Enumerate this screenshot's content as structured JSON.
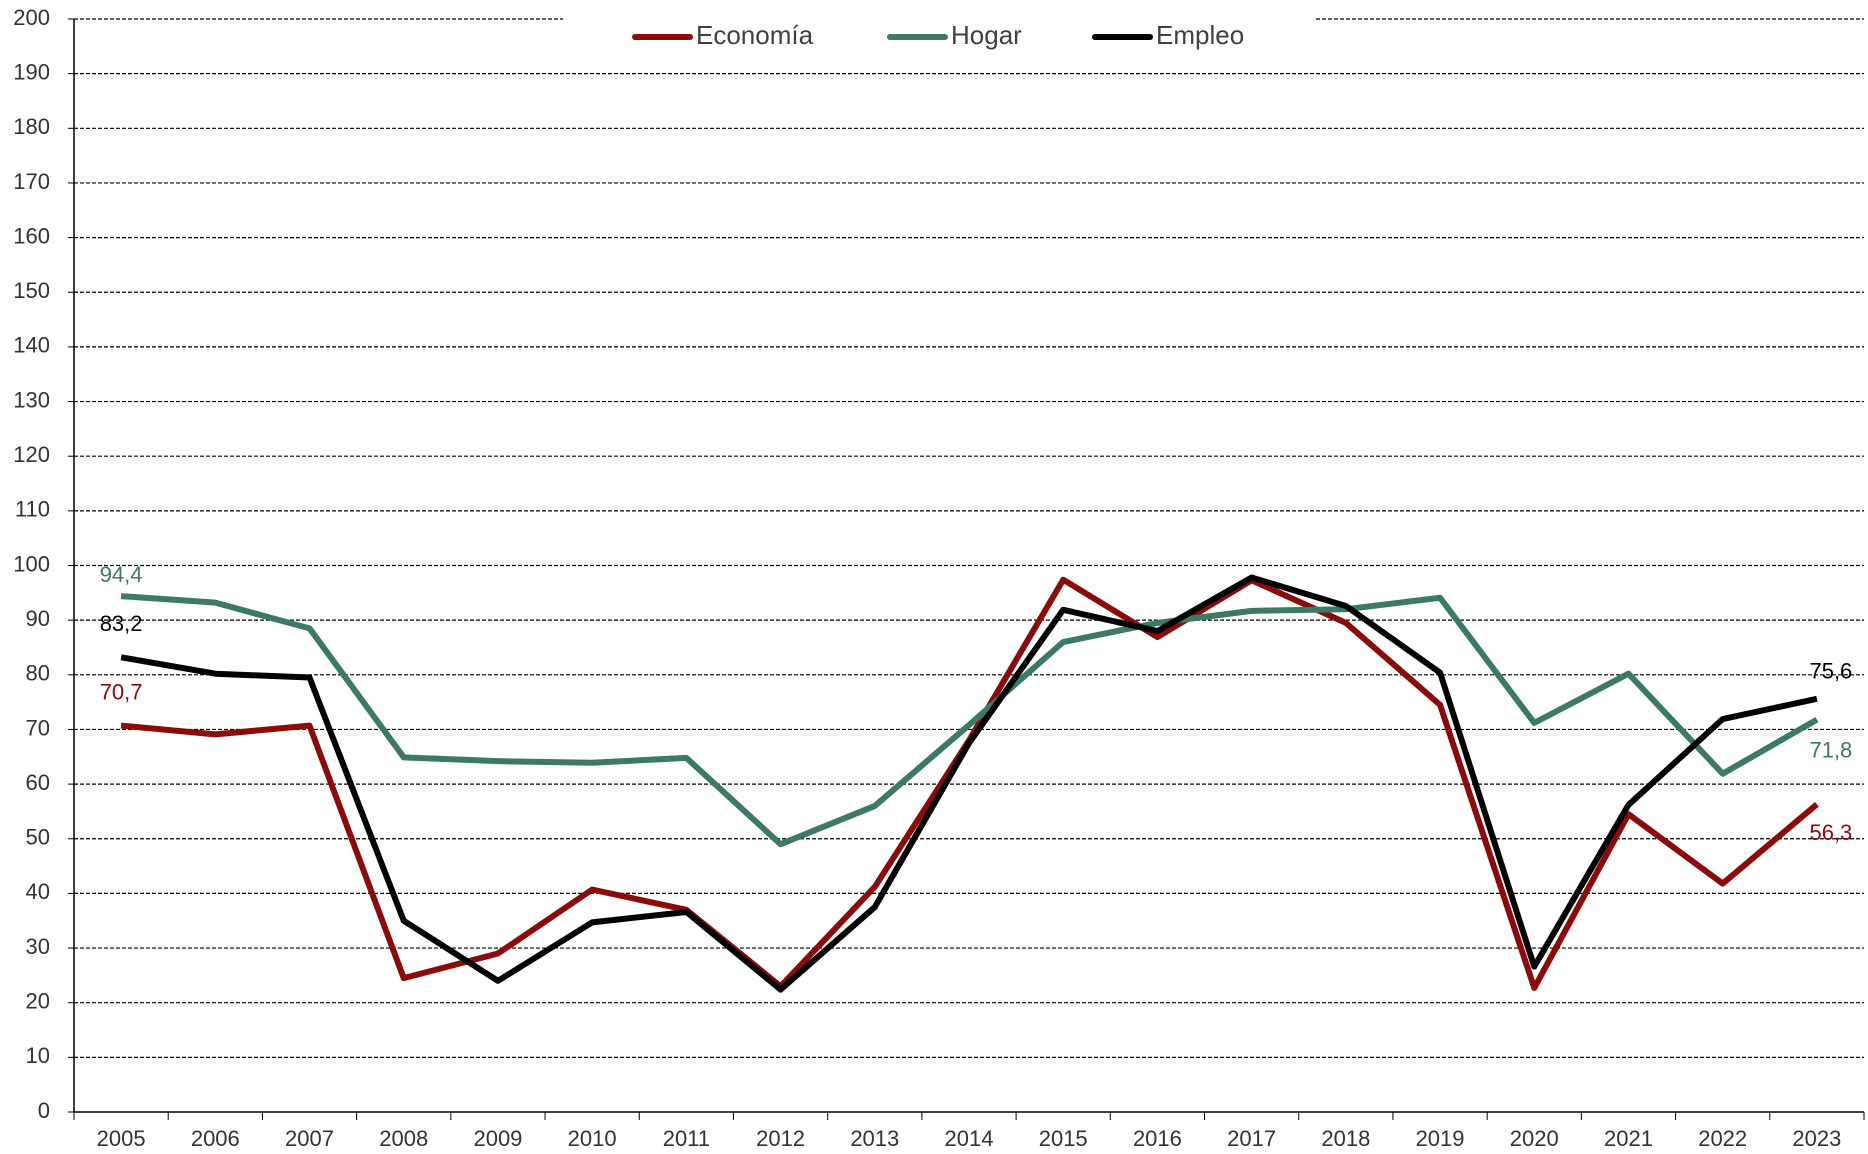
{
  "chart_data": {
    "type": "line",
    "categories": [
      "2005",
      "2006",
      "2007",
      "2008",
      "2009",
      "2010",
      "2011",
      "2012",
      "2013",
      "2014",
      "2015",
      "2016",
      "2017",
      "2018",
      "2019",
      "2020",
      "2021",
      "2022",
      "2023"
    ],
    "series": [
      {
        "name": "Economía",
        "color": "#8b0a0a",
        "values": [
          70.7,
          69.1,
          70.7,
          24.5,
          29,
          40.7,
          37,
          23,
          41.2,
          68,
          97.4,
          86.9,
          97.3,
          89.5,
          74.5,
          22.7,
          54.5,
          41.8,
          56.3
        ],
        "value_labels": [
          "70,7",
          null,
          null,
          null,
          null,
          null,
          null,
          null,
          null,
          null,
          null,
          null,
          null,
          null,
          null,
          null,
          null,
          null,
          "56,3"
        ]
      },
      {
        "name": "Hogar",
        "color": "#3d7a63",
        "values": [
          94.4,
          93.2,
          88.5,
          64.9,
          64.2,
          63.9,
          64.8,
          49,
          56,
          70.8,
          86,
          89.5,
          91.7,
          92,
          94.1,
          71.2,
          80.2,
          61.9,
          71.8
        ],
        "value_labels": [
          "94,4",
          null,
          null,
          null,
          null,
          null,
          null,
          null,
          null,
          null,
          null,
          null,
          null,
          null,
          null,
          null,
          null,
          null,
          "71,8"
        ]
      },
      {
        "name": "Empleo",
        "color": "#000000",
        "values": [
          83.2,
          80.2,
          79.5,
          35,
          24,
          34.7,
          36.6,
          22.4,
          37.5,
          67.5,
          91.9,
          88,
          97.8,
          92.6,
          80.4,
          26.6,
          56.2,
          71.9,
          75.6
        ],
        "value_labels": [
          "83,2",
          null,
          null,
          null,
          null,
          null,
          null,
          null,
          null,
          null,
          null,
          null,
          null,
          null,
          null,
          null,
          null,
          null,
          "75,6"
        ]
      }
    ],
    "ylim": [
      0,
      200
    ],
    "yticks": [
      0,
      10,
      20,
      30,
      40,
      50,
      60,
      70,
      80,
      90,
      100,
      110,
      120,
      130,
      140,
      150,
      160,
      170,
      180,
      190,
      200
    ],
    "grid": true,
    "legend": "top"
  }
}
